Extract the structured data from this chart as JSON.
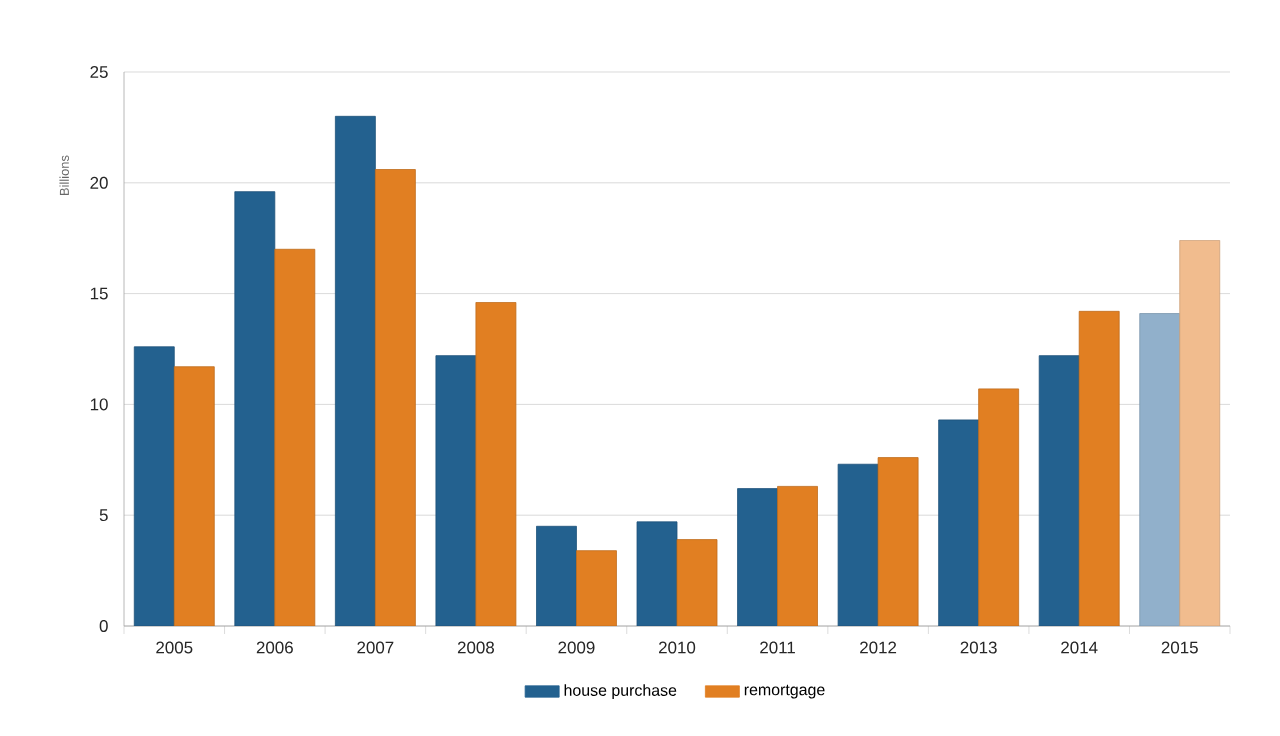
{
  "chart_data": {
    "type": "bar",
    "ylabel": "Billions",
    "categories": [
      "2005",
      "2006",
      "2007",
      "2008",
      "2009",
      "2010",
      "2011",
      "2012",
      "2013",
      "2014",
      "2015"
    ],
    "series": [
      {
        "name": "house purchase",
        "color": "#23618f",
        "colors": [
          "#23618f",
          "#23618f",
          "#23618f",
          "#23618f",
          "#23618f",
          "#23618f",
          "#23618f",
          "#23618f",
          "#23618f",
          "#23618f",
          "#91b0cb"
        ],
        "values": [
          12.6,
          19.6,
          23.0,
          12.2,
          4.5,
          4.7,
          6.2,
          7.3,
          9.3,
          12.2,
          14.1
        ]
      },
      {
        "name": "remortgage",
        "color": "#e17f22",
        "colors": [
          "#e17f22",
          "#e17f22",
          "#e17f22",
          "#e17f22",
          "#e17f22",
          "#e17f22",
          "#e17f22",
          "#e17f22",
          "#e17f22",
          "#e17f22",
          "#f1bc8e"
        ],
        "values": [
          11.7,
          17.0,
          20.6,
          14.6,
          3.4,
          3.9,
          6.3,
          7.6,
          10.7,
          14.2,
          17.4
        ]
      }
    ],
    "ylim": [
      0,
      25
    ],
    "yticks": [
      0,
      5,
      10,
      15,
      20,
      25
    ],
    "grid": "y",
    "legend": "bottom"
  }
}
